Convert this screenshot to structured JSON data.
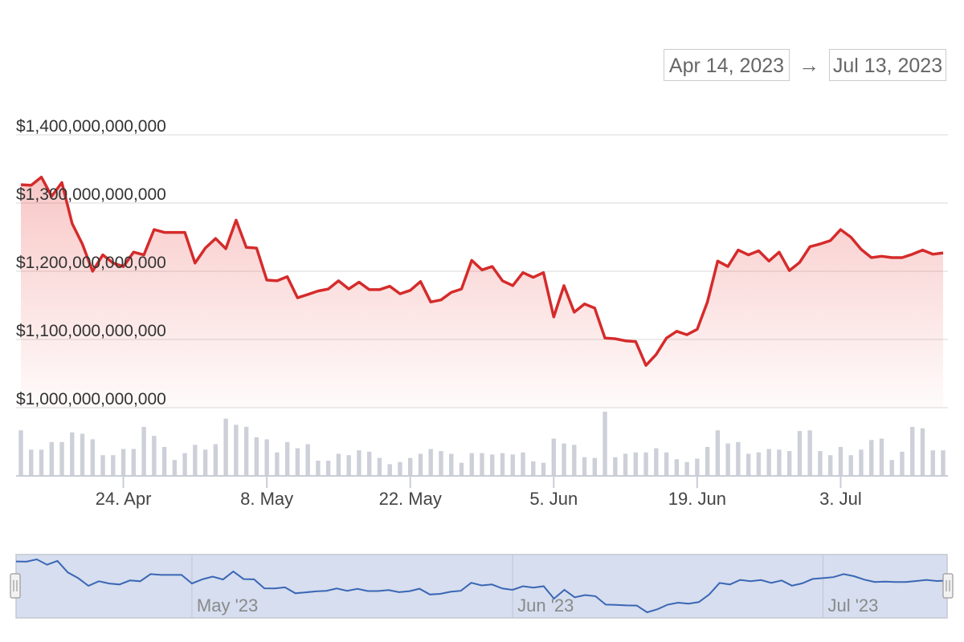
{
  "range_selector": {
    "from": "Apr 14, 2023",
    "arrow": "→",
    "to": "Jul 13, 2023"
  },
  "colors": {
    "price_line": "#d52b2b",
    "price_fill": "#e53935",
    "volume_bar": "#cdd0d8",
    "navigator_line": "#3a66b5",
    "navigator_fill": "#d6deef",
    "grid": "#e6e6e6"
  },
  "chart_data": {
    "type": "line",
    "y_axis": {
      "min": 1000000000000,
      "max": 1400000000000,
      "tick_labels": [
        "$1,400,000,000,000",
        "$1,300,000,000,000",
        "$1,200,000,000,000",
        "$1,100,000,000,000",
        "$1,000,000,000,000"
      ],
      "tick_values": [
        1400000000000,
        1300000000000,
        1200000000000,
        1100000000000,
        1000000000000
      ]
    },
    "x_axis": {
      "start": "2023-04-14",
      "end": "2023-07-13",
      "ticks": [
        {
          "date": "2023-04-24",
          "label": "24. Apr"
        },
        {
          "date": "2023-05-08",
          "label": "8. May"
        },
        {
          "date": "2023-05-22",
          "label": "22. May"
        },
        {
          "date": "2023-06-05",
          "label": "5. Jun"
        },
        {
          "date": "2023-06-19",
          "label": "19. Jun"
        },
        {
          "date": "2023-07-03",
          "label": "3. Jul"
        }
      ]
    },
    "grid": true,
    "series": [
      {
        "kind": "line-area",
        "points": [
          [
            "2023-04-14",
            1327000000000
          ],
          [
            "2023-04-15",
            1326000000000
          ],
          [
            "2023-04-16",
            1338000000000
          ],
          [
            "2023-04-17",
            1310000000000
          ],
          [
            "2023-04-18",
            1330000000000
          ],
          [
            "2023-04-19",
            1270000000000
          ],
          [
            "2023-04-20",
            1240000000000
          ],
          [
            "2023-04-21",
            1200000000000
          ],
          [
            "2023-04-22",
            1224000000000
          ],
          [
            "2023-04-23",
            1212000000000
          ],
          [
            "2023-04-24",
            1207000000000
          ],
          [
            "2023-04-25",
            1228000000000
          ],
          [
            "2023-04-26",
            1224000000000
          ],
          [
            "2023-04-27",
            1261000000000
          ],
          [
            "2023-04-28",
            1257000000000
          ],
          [
            "2023-04-29",
            1257000000000
          ],
          [
            "2023-04-30",
            1257000000000
          ],
          [
            "2023-05-01",
            1212000000000
          ],
          [
            "2023-05-02",
            1234000000000
          ],
          [
            "2023-05-03",
            1248000000000
          ],
          [
            "2023-05-04",
            1233000000000
          ],
          [
            "2023-05-05",
            1275000000000
          ],
          [
            "2023-05-06",
            1235000000000
          ],
          [
            "2023-05-07",
            1234000000000
          ],
          [
            "2023-05-08",
            1187000000000
          ],
          [
            "2023-05-09",
            1186000000000
          ],
          [
            "2023-05-10",
            1192000000000
          ],
          [
            "2023-05-11",
            1161000000000
          ],
          [
            "2023-05-12",
            1166000000000
          ],
          [
            "2023-05-13",
            1171000000000
          ],
          [
            "2023-05-14",
            1174000000000
          ],
          [
            "2023-05-15",
            1186000000000
          ],
          [
            "2023-05-16",
            1174000000000
          ],
          [
            "2023-05-17",
            1184000000000
          ],
          [
            "2023-05-18",
            1173000000000
          ],
          [
            "2023-05-19",
            1173000000000
          ],
          [
            "2023-05-20",
            1178000000000
          ],
          [
            "2023-05-21",
            1167000000000
          ],
          [
            "2023-05-22",
            1172000000000
          ],
          [
            "2023-05-23",
            1185000000000
          ],
          [
            "2023-05-24",
            1155000000000
          ],
          [
            "2023-05-25",
            1158000000000
          ],
          [
            "2023-05-26",
            1169000000000
          ],
          [
            "2023-05-27",
            1174000000000
          ],
          [
            "2023-05-28",
            1216000000000
          ],
          [
            "2023-05-29",
            1202000000000
          ],
          [
            "2023-05-30",
            1207000000000
          ],
          [
            "2023-05-31",
            1186000000000
          ],
          [
            "2023-06-01",
            1179000000000
          ],
          [
            "2023-06-02",
            1198000000000
          ],
          [
            "2023-06-03",
            1191000000000
          ],
          [
            "2023-06-04",
            1198000000000
          ],
          [
            "2023-06-05",
            1133000000000
          ],
          [
            "2023-06-06",
            1179000000000
          ],
          [
            "2023-06-07",
            1140000000000
          ],
          [
            "2023-06-08",
            1152000000000
          ],
          [
            "2023-06-09",
            1146000000000
          ],
          [
            "2023-06-10",
            1102000000000
          ],
          [
            "2023-06-11",
            1101000000000
          ],
          [
            "2023-06-12",
            1098000000000
          ],
          [
            "2023-06-13",
            1097000000000
          ],
          [
            "2023-06-14",
            1062000000000
          ],
          [
            "2023-06-15",
            1078000000000
          ],
          [
            "2023-06-16",
            1102000000000
          ],
          [
            "2023-06-17",
            1112000000000
          ],
          [
            "2023-06-18",
            1107000000000
          ],
          [
            "2023-06-19",
            1115000000000
          ],
          [
            "2023-06-20",
            1155000000000
          ],
          [
            "2023-06-21",
            1215000000000
          ],
          [
            "2023-06-22",
            1207000000000
          ],
          [
            "2023-06-23",
            1231000000000
          ],
          [
            "2023-06-24",
            1224000000000
          ],
          [
            "2023-06-25",
            1230000000000
          ],
          [
            "2023-06-26",
            1215000000000
          ],
          [
            "2023-06-27",
            1228000000000
          ],
          [
            "2023-06-28",
            1201000000000
          ],
          [
            "2023-06-29",
            1213000000000
          ],
          [
            "2023-06-30",
            1236000000000
          ],
          [
            "2023-07-01",
            1240000000000
          ],
          [
            "2023-07-02",
            1245000000000
          ],
          [
            "2023-07-03",
            1261000000000
          ],
          [
            "2023-07-04",
            1250000000000
          ],
          [
            "2023-07-05",
            1232000000000
          ],
          [
            "2023-07-06",
            1220000000000
          ],
          [
            "2023-07-07",
            1222000000000
          ],
          [
            "2023-07-08",
            1220000000000
          ],
          [
            "2023-07-09",
            1220000000000
          ],
          [
            "2023-07-10",
            1225000000000
          ],
          [
            "2023-07-11",
            1231000000000
          ],
          [
            "2023-07-12",
            1225000000000
          ],
          [
            "2023-07-13",
            1227000000000
          ]
        ]
      },
      {
        "kind": "volume",
        "values": [
          0.66,
          0.38,
          0.38,
          0.49,
          0.49,
          0.63,
          0.61,
          0.53,
          0.3,
          0.3,
          0.39,
          0.39,
          0.71,
          0.58,
          0.42,
          0.23,
          0.33,
          0.45,
          0.38,
          0.46,
          0.83,
          0.74,
          0.71,
          0.56,
          0.53,
          0.34,
          0.49,
          0.4,
          0.46,
          0.22,
          0.22,
          0.32,
          0.3,
          0.37,
          0.35,
          0.26,
          0.17,
          0.2,
          0.26,
          0.32,
          0.39,
          0.36,
          0.32,
          0.19,
          0.33,
          0.33,
          0.31,
          0.33,
          0.31,
          0.34,
          0.21,
          0.19,
          0.54,
          0.47,
          0.45,
          0.27,
          0.26,
          0.93,
          0.27,
          0.32,
          0.34,
          0.34,
          0.4,
          0.34,
          0.24,
          0.2,
          0.25,
          0.42,
          0.66,
          0.47,
          0.49,
          0.32,
          0.34,
          0.39,
          0.38,
          0.36,
          0.65,
          0.66,
          0.36,
          0.3,
          0.42,
          0.3,
          0.38,
          0.52,
          0.54,
          0.23,
          0.35,
          0.71,
          0.69,
          0.37,
          0.37
        ]
      }
    ],
    "navigator": {
      "labels": [
        {
          "date": "2023-05-01",
          "label": "May '23"
        },
        {
          "date": "2023-06-01",
          "label": "Jun '23"
        },
        {
          "date": "2023-07-01",
          "label": "Jul '23"
        }
      ]
    }
  }
}
